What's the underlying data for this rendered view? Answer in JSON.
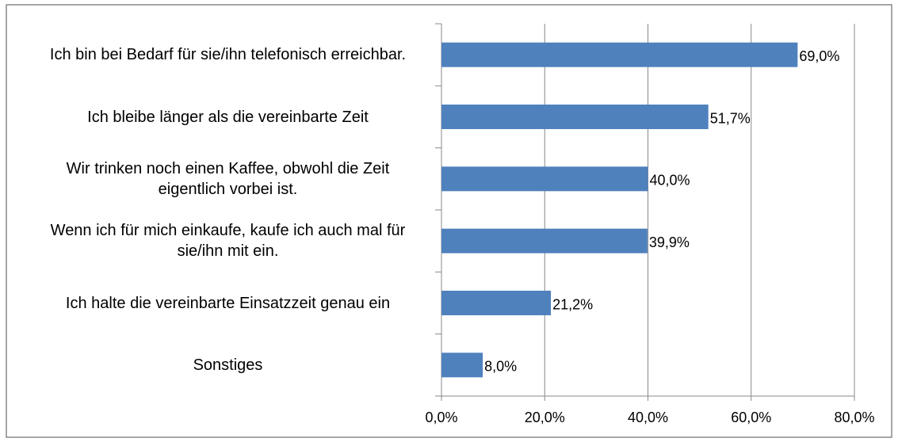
{
  "chart_data": {
    "type": "bar",
    "orientation": "horizontal",
    "categories": [
      "Ich bin bei Bedarf für sie/ihn telefonisch erreichbar.",
      "Ich bleibe länger als die vereinbarte Zeit",
      "Wir trinken noch einen Kaffee, obwohl die Zeit eigentlich vorbei ist.",
      "Wenn ich für mich einkaufe, kaufe ich auch mal für sie/ihn mit ein.",
      "Ich halte die vereinbarte Einsatzzeit genau ein",
      "Sonstiges"
    ],
    "values": [
      69.0,
      51.7,
      40.0,
      39.9,
      21.2,
      8.0
    ],
    "value_labels": [
      "69,0%",
      "51,7%",
      "40,0%",
      "39,9%",
      "21,2%",
      "8,0%"
    ],
    "color": "#4f81bd",
    "xlim": [
      0,
      80
    ],
    "xticks": [
      {
        "value": 0,
        "label": "0,0%"
      },
      {
        "value": 20,
        "label": "20,0%"
      },
      {
        "value": 40,
        "label": "40,0%"
      },
      {
        "value": 60,
        "label": "60,0%"
      },
      {
        "value": 80,
        "label": "80,0%"
      }
    ],
    "grid": true
  }
}
